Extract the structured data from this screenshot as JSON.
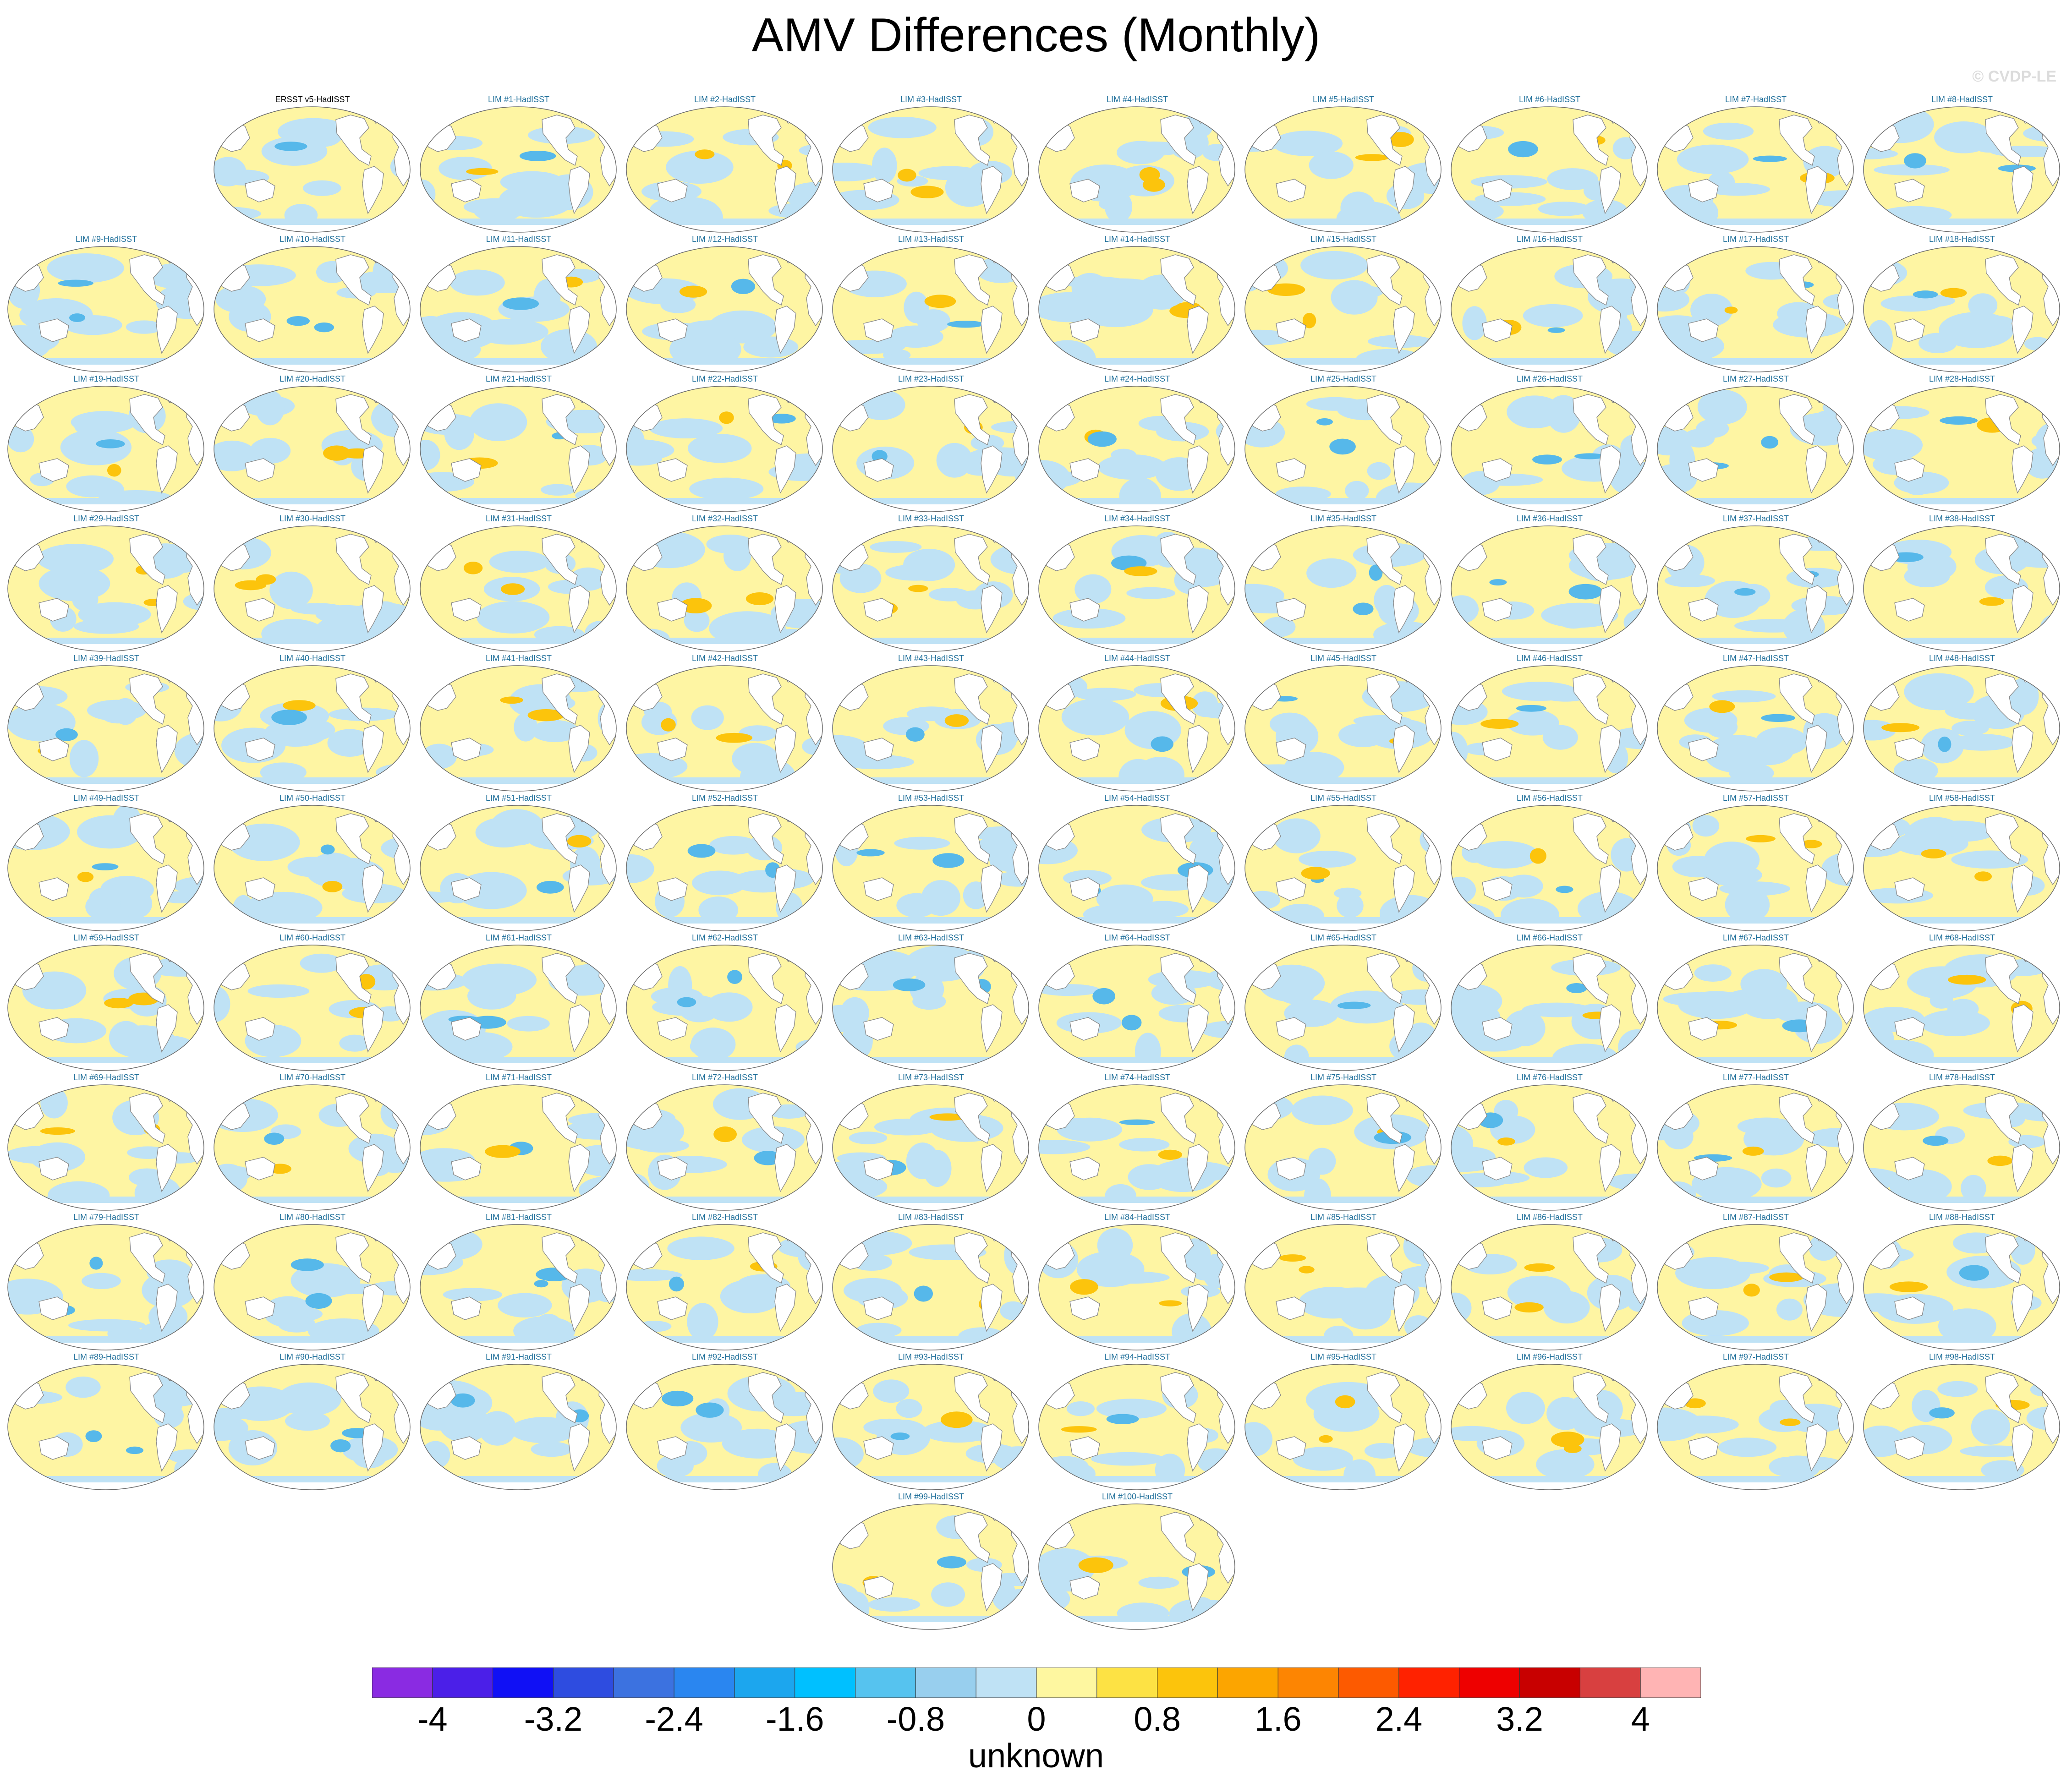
{
  "title": "AMV Differences (Monthly)",
  "watermark": "© CVDP-LE",
  "panels": [
    "ERSST v5-HadISST",
    "LIM #1-HadISST",
    "LIM #2-HadISST",
    "LIM #3-HadISST",
    "LIM #4-HadISST",
    "LIM #5-HadISST",
    "LIM #6-HadISST",
    "LIM #7-HadISST",
    "LIM #8-HadISST",
    "LIM #9-HadISST",
    "LIM #10-HadISST",
    "LIM #11-HadISST",
    "LIM #12-HadISST",
    "LIM #13-HadISST",
    "LIM #14-HadISST",
    "LIM #15-HadISST",
    "LIM #16-HadISST",
    "LIM #17-HadISST",
    "LIM #18-HadISST",
    "LIM #19-HadISST",
    "LIM #20-HadISST",
    "LIM #21-HadISST",
    "LIM #22-HadISST",
    "LIM #23-HadISST",
    "LIM #24-HadISST",
    "LIM #25-HadISST",
    "LIM #26-HadISST",
    "LIM #27-HadISST",
    "LIM #28-HadISST",
    "LIM #29-HadISST",
    "LIM #30-HadISST",
    "LIM #31-HadISST",
    "LIM #32-HadISST",
    "LIM #33-HadISST",
    "LIM #34-HadISST",
    "LIM #35-HadISST",
    "LIM #36-HadISST",
    "LIM #37-HadISST",
    "LIM #38-HadISST",
    "LIM #39-HadISST",
    "LIM #40-HadISST",
    "LIM #41-HadISST",
    "LIM #42-HadISST",
    "LIM #43-HadISST",
    "LIM #44-HadISST",
    "LIM #45-HadISST",
    "LIM #46-HadISST",
    "LIM #47-HadISST",
    "LIM #48-HadISST",
    "LIM #49-HadISST",
    "LIM #50-HadISST",
    "LIM #51-HadISST",
    "LIM #52-HadISST",
    "LIM #53-HadISST",
    "LIM #54-HadISST",
    "LIM #55-HadISST",
    "LIM #56-HadISST",
    "LIM #57-HadISST",
    "LIM #58-HadISST",
    "LIM #59-HadISST",
    "LIM #60-HadISST",
    "LIM #61-HadISST",
    "LIM #62-HadISST",
    "LIM #63-HadISST",
    "LIM #64-HadISST",
    "LIM #65-HadISST",
    "LIM #66-HadISST",
    "LIM #67-HadISST",
    "LIM #68-HadISST",
    "LIM #69-HadISST",
    "LIM #70-HadISST",
    "LIM #71-HadISST",
    "LIM #72-HadISST",
    "LIM #73-HadISST",
    "LIM #74-HadISST",
    "LIM #75-HadISST",
    "LIM #76-HadISST",
    "LIM #77-HadISST",
    "LIM #78-HadISST",
    "LIM #79-HadISST",
    "LIM #80-HadISST",
    "LIM #81-HadISST",
    "LIM #82-HadISST",
    "LIM #83-HadISST",
    "LIM #84-HadISST",
    "LIM #85-HadISST",
    "LIM #86-HadISST",
    "LIM #87-HadISST",
    "LIM #88-HadISST",
    "LIM #89-HadISST",
    "LIM #90-HadISST",
    "LIM #91-HadISST",
    "LIM #92-HadISST",
    "LIM #93-HadISST",
    "LIM #94-HadISST",
    "LIM #95-HadISST",
    "LIM #96-HadISST",
    "LIM #97-HadISST",
    "LIM #98-HadISST",
    "LIM #99-HadISST",
    "LIM #100-HadISST"
  ],
  "colorbar": {
    "title": "unknown",
    "colors": [
      "#8a2be2",
      "#4b1fe8",
      "#1010f5",
      "#2e4ce0",
      "#3c72e0",
      "#2a86f0",
      "#1ca6ee",
      "#00c0ff",
      "#56c3ef",
      "#98cfee",
      "#bfe2f5",
      "#fef7a0",
      "#fde244",
      "#fcc40c",
      "#fca500",
      "#fd8502",
      "#fd5a00",
      "#ff2200",
      "#ee0000",
      "#c80000",
      "#d84040",
      "#ffb4b4"
    ],
    "tick_labels": [
      "-4",
      "-3.2",
      "-2.4",
      "-1.6",
      "-0.8",
      "0",
      "0.8",
      "1.6",
      "2.4",
      "3.2",
      "4"
    ],
    "ocean_colors": {
      "pos": "#fef5a3",
      "neg": "#bfe2f5",
      "strong_pos": "#fcc40c",
      "strong_neg": "#56b8ea"
    }
  }
}
